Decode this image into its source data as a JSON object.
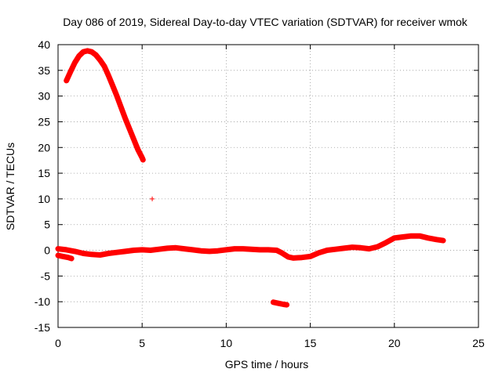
{
  "chart_data": {
    "type": "scatter",
    "title": "Day 086 of 2019, Sidereal Day-to-day VTEC variation (SDTVAR) for receiver wmok",
    "xlabel": "GPS time / hours",
    "ylabel": "SDTVAR / TECUs",
    "xlim": [
      0,
      25
    ],
    "ylim": [
      -15,
      40
    ],
    "grid": true,
    "x_ticks": [
      0,
      5,
      10,
      15,
      20,
      25
    ],
    "y_ticks": [
      -15,
      -10,
      -5,
      0,
      5,
      10,
      15,
      20,
      25,
      30,
      35,
      40
    ],
    "marker": "+",
    "color": "#ff0000",
    "series": [
      {
        "name": "early-pass",
        "points": [
          [
            0.5,
            33.0
          ],
          [
            0.75,
            34.8
          ],
          [
            1.0,
            36.5
          ],
          [
            1.25,
            37.8
          ],
          [
            1.5,
            38.6
          ],
          [
            1.75,
            38.8
          ],
          [
            2.0,
            38.6
          ],
          [
            2.25,
            38.0
          ],
          [
            2.5,
            37.0
          ],
          [
            2.75,
            35.8
          ],
          [
            3.0,
            34.0
          ],
          [
            3.25,
            32.0
          ],
          [
            3.5,
            30.0
          ],
          [
            3.75,
            27.8
          ],
          [
            4.0,
            25.6
          ],
          [
            4.25,
            23.6
          ],
          [
            4.5,
            21.6
          ],
          [
            4.75,
            19.6
          ],
          [
            5.0,
            18.0
          ],
          [
            5.05,
            17.6
          ]
        ]
      },
      {
        "name": "outlier",
        "points": [
          [
            5.6,
            10.0
          ]
        ]
      },
      {
        "name": "main-trace",
        "points": [
          [
            0.0,
            0.3
          ],
          [
            0.5,
            0.1
          ],
          [
            1.0,
            -0.2
          ],
          [
            1.5,
            -0.6
          ],
          [
            2.0,
            -0.8
          ],
          [
            2.5,
            -0.9
          ],
          [
            3.0,
            -0.6
          ],
          [
            3.5,
            -0.4
          ],
          [
            4.0,
            -0.2
          ],
          [
            4.5,
            0.0
          ],
          [
            5.0,
            0.1
          ],
          [
            5.5,
            0.0
          ],
          [
            6.0,
            0.2
          ],
          [
            6.5,
            0.4
          ],
          [
            7.0,
            0.5
          ],
          [
            7.5,
            0.3
          ],
          [
            8.0,
            0.1
          ],
          [
            8.5,
            -0.1
          ],
          [
            9.0,
            -0.2
          ],
          [
            9.5,
            -0.1
          ],
          [
            10.0,
            0.1
          ],
          [
            10.5,
            0.3
          ],
          [
            11.0,
            0.3
          ],
          [
            11.5,
            0.2
          ],
          [
            12.0,
            0.1
          ],
          [
            12.5,
            0.1
          ],
          [
            13.0,
            0.0
          ],
          [
            13.3,
            -0.5
          ],
          [
            13.7,
            -1.3
          ],
          [
            14.0,
            -1.5
          ],
          [
            14.5,
            -1.4
          ],
          [
            15.0,
            -1.2
          ],
          [
            15.5,
            -0.5
          ],
          [
            16.0,
            0.0
          ],
          [
            16.5,
            0.2
          ],
          [
            17.0,
            0.4
          ],
          [
            17.5,
            0.6
          ],
          [
            18.0,
            0.5
          ],
          [
            18.5,
            0.3
          ],
          [
            19.0,
            0.7
          ],
          [
            19.5,
            1.5
          ],
          [
            20.0,
            2.4
          ],
          [
            20.5,
            2.6
          ],
          [
            21.0,
            2.8
          ],
          [
            21.5,
            2.8
          ],
          [
            22.0,
            2.4
          ],
          [
            22.5,
            2.1
          ],
          [
            22.9,
            1.9
          ]
        ]
      },
      {
        "name": "start-segment",
        "points": [
          [
            0.0,
            -1.0
          ],
          [
            0.3,
            -1.2
          ],
          [
            0.6,
            -1.4
          ],
          [
            0.8,
            -1.6
          ]
        ]
      },
      {
        "name": "low-segment",
        "points": [
          [
            12.8,
            -10.1
          ],
          [
            13.1,
            -10.3
          ],
          [
            13.4,
            -10.5
          ],
          [
            13.6,
            -10.6
          ]
        ]
      }
    ]
  }
}
